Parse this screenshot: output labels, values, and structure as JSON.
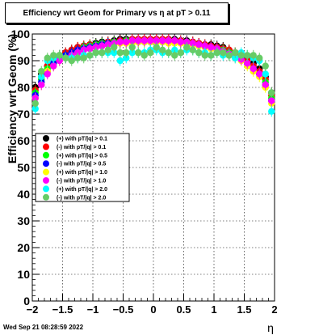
{
  "title": "Efficiency wrt Geom for Primary vs    η at pT > 0.11",
  "footer_date": "Wed Sep 21 08:28:59 2022",
  "chart_data": {
    "type": "scatter",
    "title": "Efficiency wrt Geom for Primary vs    η at pT > 0.11",
    "xlabel": "η",
    "ylabel": "Efficiency wrt Geom (%)",
    "xlim": [
      -2,
      2
    ],
    "ylim": [
      0,
      100
    ],
    "x_ticks": [
      -2,
      -1.5,
      -1,
      -0.5,
      0,
      0.5,
      1,
      1.5,
      2
    ],
    "x_tick_labels": [
      "−2",
      "−1.5",
      "−1",
      "−0.5",
      "0",
      "0.5",
      "1",
      "1.5",
      "2"
    ],
    "y_ticks": [
      0,
      10,
      20,
      30,
      40,
      50,
      60,
      70,
      80,
      90,
      100
    ],
    "y_tick_labels": [
      "0",
      "10",
      "20",
      "30",
      "40",
      "50",
      "60",
      "70",
      "80",
      "90",
      "100"
    ],
    "grid": true,
    "legend_position": "left-middle",
    "x": [
      -1.95,
      -1.85,
      -1.75,
      -1.65,
      -1.55,
      -1.45,
      -1.35,
      -1.25,
      -1.15,
      -1.05,
      -0.95,
      -0.85,
      -0.75,
      -0.65,
      -0.55,
      -0.45,
      -0.35,
      -0.25,
      -0.15,
      -0.05,
      0.05,
      0.15,
      0.25,
      0.35,
      0.45,
      0.55,
      0.65,
      0.75,
      0.85,
      0.95,
      1.05,
      1.15,
      1.25,
      1.35,
      1.45,
      1.55,
      1.65,
      1.75,
      1.85,
      1.95
    ],
    "series": [
      {
        "name": "(+) with pT/|q| > 0.1",
        "color": "#000000",
        "values": [
          80,
          85,
          88,
          90,
          92,
          93,
          94,
          95,
          95.5,
          96,
          96.5,
          97,
          97,
          97.5,
          98,
          98,
          98,
          98,
          98,
          98,
          98,
          98,
          98,
          98,
          97.5,
          97.5,
          97,
          96.5,
          96,
          96,
          95.5,
          95,
          94,
          93,
          92,
          91,
          89,
          87,
          84,
          78
        ]
      },
      {
        "name": "(-) with pT/|q| > 0.1",
        "color": "#ff0000",
        "values": [
          79,
          84,
          88,
          90,
          92,
          93,
          94,
          95,
          95.5,
          96,
          96,
          96.5,
          97,
          97,
          97.5,
          97.5,
          98,
          98,
          98,
          98,
          98,
          98,
          98,
          97.5,
          97.5,
          97,
          97,
          96.5,
          96,
          95.5,
          95,
          94.5,
          94,
          93,
          92,
          90,
          88,
          86,
          83,
          77
        ]
      },
      {
        "name": "(+) with pT/|q| > 0.5",
        "color": "#00ff00",
        "values": [
          78,
          83,
          87,
          89,
          91,
          92,
          93,
          94,
          95,
          95.5,
          96,
          96.5,
          96.5,
          97,
          97,
          97.5,
          97.5,
          97.5,
          97.5,
          97.5,
          97.5,
          97.5,
          97.5,
          97.5,
          97,
          97,
          96.5,
          96,
          95.5,
          95,
          94.5,
          94,
          93,
          92,
          91,
          89,
          87,
          85,
          82,
          76
        ]
      },
      {
        "name": "(-) with pT/|q| > 0.5",
        "color": "#0000ff",
        "values": [
          77,
          82,
          86,
          89,
          91,
          92,
          93,
          94,
          94.5,
          95,
          95.5,
          96,
          96.5,
          96.5,
          97,
          97,
          97,
          97,
          97,
          97,
          97,
          97,
          97,
          97,
          97,
          96.5,
          96,
          96,
          95.5,
          95,
          94.5,
          93.5,
          92.5,
          91.5,
          90.5,
          89,
          87,
          85,
          81,
          75
        ]
      },
      {
        "name": "(+) with pT/|q| > 1.0",
        "color": "#ffff00",
        "values": [
          76,
          81,
          86,
          88,
          90,
          91,
          92,
          93,
          94,
          94.5,
          95,
          95.5,
          96,
          96,
          96.5,
          96.5,
          96.5,
          97,
          97,
          97,
          97,
          97,
          96.5,
          96.5,
          96.5,
          96,
          96,
          95.5,
          95,
          94.5,
          94,
          93,
          92,
          91,
          90,
          88,
          86,
          84,
          80,
          74
        ]
      },
      {
        "name": "(-) with pT/|q| > 1.0",
        "color": "#ff00ff",
        "values": [
          76,
          81,
          85,
          88,
          90,
          91,
          92,
          93,
          94,
          94.5,
          95,
          95.5,
          96,
          96.5,
          97,
          97,
          97.5,
          97.5,
          97.5,
          97.5,
          97.5,
          97.5,
          97.5,
          97.5,
          97,
          97,
          96.5,
          96,
          95.5,
          95,
          94.5,
          93.5,
          92.5,
          91.5,
          90.5,
          89,
          87,
          85,
          81,
          75
        ]
      },
      {
        "name": "(+) with pT/|q| > 2.0",
        "color": "#00ffff",
        "values": [
          72,
          84,
          90,
          91,
          92,
          91,
          91,
          91,
          92,
          92,
          93,
          93,
          93,
          93,
          90,
          91,
          93,
          93,
          93,
          94,
          94,
          93,
          93,
          94,
          93,
          94,
          94,
          93,
          93,
          92,
          93,
          92,
          92,
          91,
          93,
          92,
          91,
          90,
          85,
          71
        ]
      },
      {
        "name": "(-) with pT/|q| > 2.0",
        "color": "#66cc66",
        "values": [
          74,
          86,
          91,
          92,
          92,
          91,
          90,
          91,
          91,
          92,
          93,
          93,
          94,
          95,
          93,
          93,
          95,
          93,
          92,
          93,
          95,
          94,
          93,
          92,
          93,
          95,
          94,
          93,
          92,
          92,
          93,
          93,
          92,
          93,
          92,
          92,
          92,
          91,
          88,
          78
        ]
      }
    ]
  }
}
